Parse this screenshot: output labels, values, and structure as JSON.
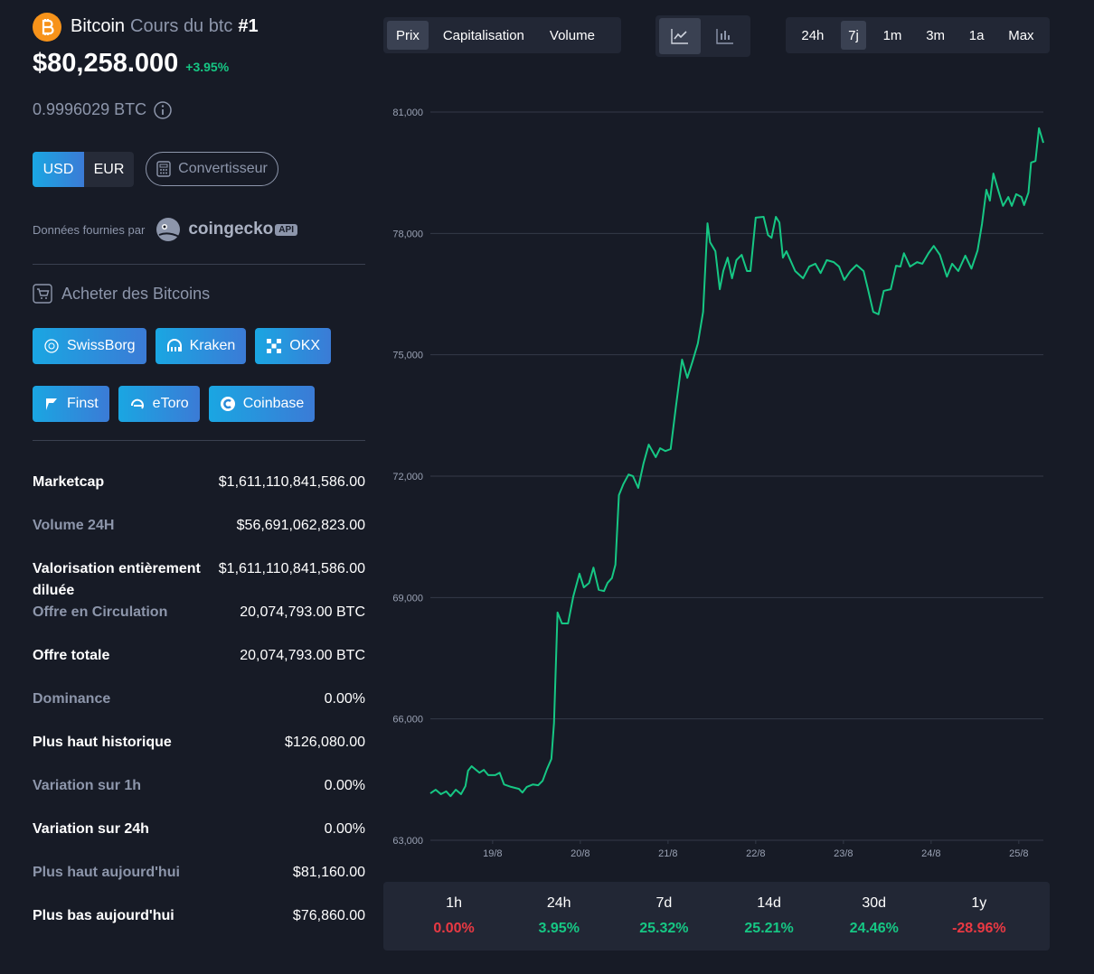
{
  "header": {
    "name": "Bitcoin",
    "subtitle": "Cours du btc",
    "rank": "#1",
    "price": "$80,258.000",
    "change": "+3.95%",
    "btc_price": "0.9996029 BTC"
  },
  "currencies": [
    "USD",
    "EUR"
  ],
  "converter": "Convertisseur",
  "provider": {
    "label": "Données fournies par",
    "brand": "coingecko",
    "badge": "API"
  },
  "buy": {
    "title": "Acheter des Bitcoins",
    "exchanges": [
      "SwissBorg",
      "Kraken",
      "OKX",
      "Finst",
      "eToro",
      "Coinbase"
    ]
  },
  "stats": [
    {
      "label": "Marketcap",
      "value": "$1,611,110,841,586.00"
    },
    {
      "label": "Volume 24H",
      "value": "$56,691,062,823.00"
    },
    {
      "label": "Valorisation entièrement diluée",
      "value": "$1,611,110,841,586.00"
    },
    {
      "label": "Offre en Circulation",
      "value": "20,074,793.00 BTC"
    },
    {
      "label": "Offre totale",
      "value": "20,074,793.00 BTC"
    },
    {
      "label": "Dominance",
      "value": "0.00%"
    },
    {
      "label": "Plus haut historique",
      "value": "$126,080.00"
    },
    {
      "label": "Variation sur 1h",
      "value": "0.00%"
    },
    {
      "label": "Variation sur 24h",
      "value": "0.00%"
    },
    {
      "label": "Plus haut aujourd'hui",
      "value": "$81,160.00"
    },
    {
      "label": "Plus bas aujourd'hui",
      "value": "$76,860.00"
    }
  ],
  "metric_tabs": [
    "Prix",
    "Capitalisation",
    "Volume"
  ],
  "range_tabs": [
    "24h",
    "7j",
    "1m",
    "3m",
    "1a",
    "Max"
  ],
  "performance": [
    {
      "period": "1h",
      "value": "0.00%",
      "color": "#ea3943"
    },
    {
      "period": "24h",
      "value": "3.95%",
      "color": "#16c784"
    },
    {
      "period": "7d",
      "value": "25.32%",
      "color": "#16c784"
    },
    {
      "period": "14d",
      "value": "25.21%",
      "color": "#16c784"
    },
    {
      "period": "30d",
      "value": "24.46%",
      "color": "#16c784"
    },
    {
      "period": "1y",
      "value": "-28.96%",
      "color": "#ea3943"
    }
  ],
  "chart_data": {
    "type": "line",
    "grid": true,
    "x": [
      18.29,
      18.35,
      18.41,
      18.47,
      18.52,
      18.58,
      18.64,
      18.69,
      18.72,
      18.76,
      18.85,
      18.9,
      18.95,
      19.03,
      19.08,
      19.13,
      19.21,
      19.3,
      19.34,
      19.39,
      19.46,
      19.52,
      19.57,
      19.62,
      19.67,
      19.7,
      19.74,
      19.79,
      19.86,
      19.92,
      19.99,
      20.04,
      20.1,
      20.15,
      20.21,
      20.27,
      20.31,
      20.36,
      20.4,
      20.44,
      20.49,
      20.55,
      20.6,
      20.66,
      20.72,
      20.78,
      20.86,
      20.91,
      20.97,
      21.03,
      21.09,
      21.16,
      21.22,
      21.28,
      21.34,
      21.4,
      21.45,
      21.48,
      21.54,
      21.59,
      21.63,
      21.68,
      21.73,
      21.78,
      21.84,
      21.9,
      21.94,
      22.0,
      22.09,
      22.14,
      22.18,
      22.23,
      22.27,
      22.31,
      22.35,
      22.45,
      22.54,
      22.61,
      22.68,
      22.74,
      22.81,
      22.89,
      22.95,
      23.01,
      23.08,
      23.15,
      23.23,
      23.28,
      23.34,
      23.4,
      23.46,
      23.54,
      23.6,
      23.65,
      23.69,
      23.76,
      23.84,
      23.9,
      23.97,
      24.03,
      24.1,
      24.18,
      24.24,
      24.31,
      24.39,
      24.46,
      24.53,
      24.58,
      24.63,
      24.67,
      24.71,
      24.77,
      24.82,
      24.88,
      24.92,
      24.97,
      25.03,
      25.06,
      25.11,
      25.14,
      25.19,
      25.23,
      25.28
    ],
    "series": [
      {
        "color": "#16c784",
        "values": [
          64160,
          64250,
          64140,
          64210,
          64090,
          64250,
          64140,
          64340,
          64720,
          64830,
          64670,
          64740,
          64610,
          64610,
          64670,
          64380,
          64320,
          64270,
          64180,
          64320,
          64380,
          64360,
          64470,
          64760,
          65010,
          65900,
          68630,
          68360,
          68360,
          69030,
          69590,
          69250,
          69360,
          69740,
          69190,
          69160,
          69360,
          69480,
          69810,
          71530,
          71800,
          72040,
          72000,
          71710,
          72310,
          72780,
          72470,
          72690,
          72620,
          72670,
          73720,
          74880,
          74430,
          74840,
          75280,
          76060,
          78250,
          77780,
          77560,
          76620,
          77070,
          77400,
          76890,
          77340,
          77470,
          77070,
          77070,
          78390,
          78410,
          77960,
          77890,
          78410,
          78270,
          77400,
          77560,
          77070,
          76890,
          77180,
          77250,
          77020,
          77340,
          77290,
          77180,
          76850,
          77070,
          77220,
          77070,
          76620,
          76060,
          76000,
          76580,
          76620,
          77200,
          77180,
          77510,
          77180,
          77290,
          77250,
          77510,
          77690,
          77470,
          76930,
          77250,
          77070,
          77450,
          77130,
          77580,
          78230,
          79080,
          78810,
          79480,
          79030,
          78680,
          78900,
          78680,
          78970,
          78900,
          78700,
          79010,
          79750,
          79790,
          80600,
          80240
        ]
      }
    ],
    "xlim": [
      18.29,
      25.28
    ],
    "xticks": [
      {
        "value": 19,
        "label": "19/8"
      },
      {
        "value": 20,
        "label": "20/8"
      },
      {
        "value": 21,
        "label": "21/8"
      },
      {
        "value": 22,
        "label": "22/8"
      },
      {
        "value": 23,
        "label": "23/8"
      },
      {
        "value": 24,
        "label": "24/8"
      },
      {
        "value": 25,
        "label": "25/8"
      }
    ],
    "ylim": [
      63000,
      81000
    ],
    "yticks": [
      {
        "value": 63000,
        "label": "63,000"
      },
      {
        "value": 66000,
        "label": "66,000"
      },
      {
        "value": 69000,
        "label": "69,000"
      },
      {
        "value": 72000,
        "label": "72,000"
      },
      {
        "value": 75000,
        "label": "75,000"
      },
      {
        "value": 78000,
        "label": "78,000"
      },
      {
        "value": 81000,
        "label": "81,000"
      }
    ]
  }
}
